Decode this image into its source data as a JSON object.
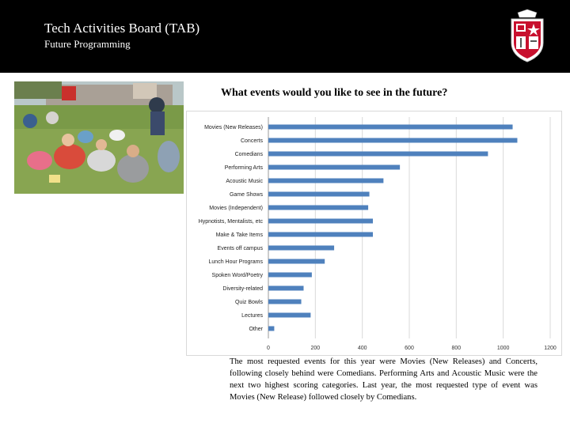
{
  "header": {
    "title": "Tech Activities Board (TAB)",
    "subtitle": "Future Programming"
  },
  "question": "What events would you like to see in the future?",
  "caption": "The most requested events for this year were Movies (New Releases) and Concerts, following closely behind were Comedians. Performing Arts and Acoustic Music were the next two highest scoring categories. Last year, the most requested type of event was Movies (New Release) followed closely by Comedians.",
  "icons": {
    "crest": "university-crest-icon",
    "photo": "students-on-lawn-photo"
  },
  "colors": {
    "header_bg": "#000000",
    "bar": "#4f81bd"
  },
  "chart_data": {
    "type": "bar",
    "orientation": "horizontal",
    "categories": [
      "Movies (New Releases)",
      "Concerts",
      "Comedians",
      "Performing Arts",
      "Acoustic Music",
      "Game Shows",
      "Movies (Independent)",
      "Hypnotists, Mentalists, etc",
      "Make & Take Items",
      "Events off campus",
      "Lunch Hour Programs",
      "Spoken Word/Poetry",
      "Diversity-related",
      "Quiz Bowls",
      "Lectures",
      "Other"
    ],
    "values": [
      1040,
      1060,
      935,
      560,
      490,
      430,
      425,
      445,
      445,
      280,
      240,
      185,
      150,
      140,
      180,
      25
    ],
    "xlim": [
      0,
      1200
    ],
    "xticks": [
      "0",
      "200",
      "400",
      "600",
      "800",
      "1000",
      "1200"
    ],
    "grid": true,
    "legend": "none"
  }
}
